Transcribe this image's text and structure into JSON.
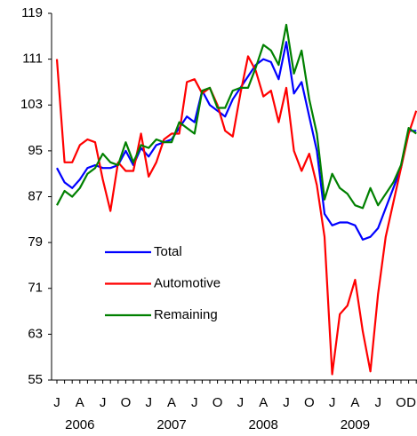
{
  "chart_data": {
    "type": "line",
    "categories": [
      "J",
      null,
      null,
      "A",
      null,
      null,
      "J",
      null,
      null,
      "O",
      null,
      null,
      "J",
      null,
      null,
      "A",
      null,
      null,
      "J",
      null,
      null,
      "O",
      null,
      null,
      "J",
      null,
      null,
      "A",
      null,
      null,
      "J",
      null,
      null,
      "O",
      null,
      null,
      "J",
      null,
      null,
      "A",
      null,
      null,
      "J",
      null,
      null,
      "O",
      null,
      "D"
    ],
    "years": [
      "2006",
      "2007",
      "2008",
      "2009"
    ],
    "ylim": [
      55,
      119
    ],
    "yticks": [
      55,
      63,
      71,
      79,
      87,
      95,
      103,
      111,
      119
    ],
    "series": [
      {
        "name": "Total",
        "color": "#0000ff",
        "values": [
          92,
          89.5,
          88.5,
          90,
          92,
          92.5,
          92,
          92,
          92.5,
          95,
          92.5,
          95.5,
          94,
          96,
          96.5,
          97,
          99,
          101,
          100,
          105.5,
          103,
          102,
          101,
          104,
          106,
          108,
          110,
          111,
          110.5,
          107.5,
          114,
          105,
          107,
          101,
          95,
          84,
          82,
          82.5,
          82.5,
          82,
          79.5,
          80,
          81.5,
          85,
          88.5,
          92,
          98.5,
          98.5
        ]
      },
      {
        "name": "Automotive",
        "color": "#ff0000",
        "values": [
          111,
          93,
          93,
          96,
          97,
          96.5,
          90,
          84.5,
          93,
          91.5,
          91.5,
          98,
          90.5,
          93,
          97,
          98,
          98,
          107,
          107.5,
          105,
          106,
          103,
          98.5,
          97.5,
          105,
          111.5,
          109,
          104.5,
          105.5,
          100,
          106,
          95,
          91.5,
          94.5,
          89,
          80,
          56,
          66.5,
          68,
          72.5,
          63.5,
          56.5,
          70,
          80,
          86,
          92,
          98,
          102
        ]
      },
      {
        "name": "Remaining",
        "color": "#008000",
        "values": [
          85.5,
          88,
          87,
          88.5,
          91,
          92,
          94.5,
          93,
          92.5,
          96.5,
          93,
          96,
          95.5,
          97,
          96.5,
          96.5,
          100,
          99,
          98,
          105.5,
          106,
          102.5,
          102.5,
          105.5,
          106,
          106,
          109.5,
          113.5,
          112.5,
          110,
          117,
          108.5,
          112.5,
          104,
          98,
          86.5,
          91,
          88.5,
          87.5,
          85.5,
          85,
          88.5,
          85.5,
          87.5,
          89.5,
          92.5,
          99,
          98
        ]
      }
    ]
  }
}
